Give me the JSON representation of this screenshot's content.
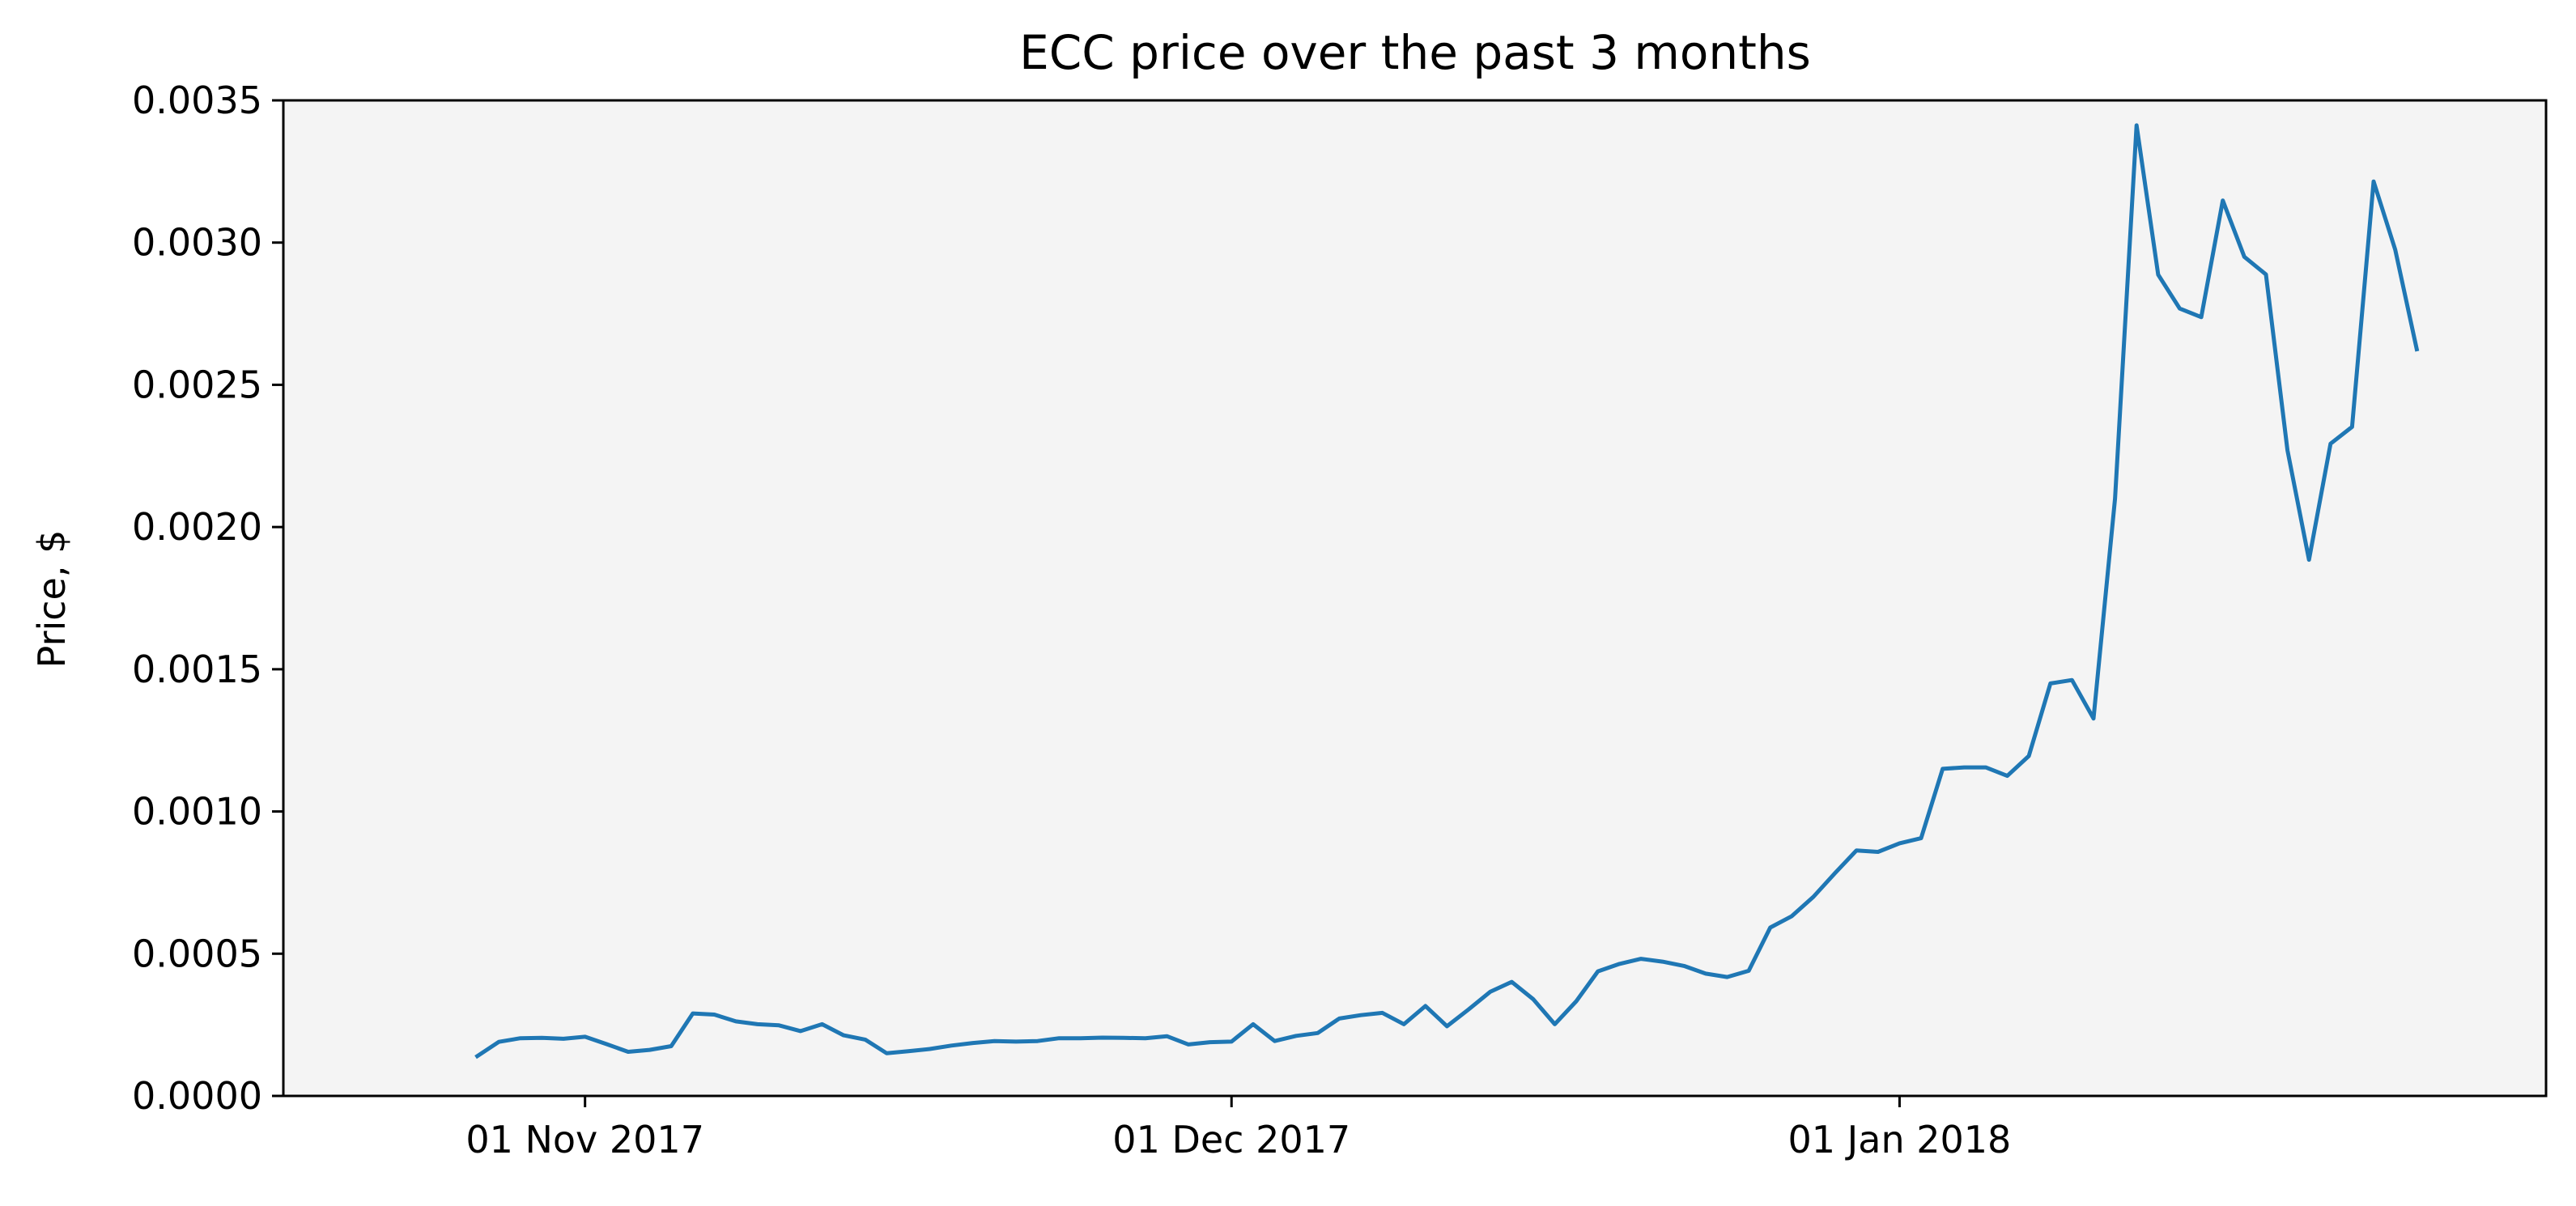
{
  "chart_data": {
    "type": "line",
    "title": "ECC price over the past 3 months",
    "xlabel": "",
    "ylabel": "Price, $",
    "xlim": [
      "2017-10-18",
      "2018-01-31"
    ],
    "ylim": [
      0,
      0.0035
    ],
    "yticks": [
      "0.0000",
      "0.0005",
      "0.0010",
      "0.0015",
      "0.0020",
      "0.0025",
      "0.0030",
      "0.0035"
    ],
    "xticks": [
      {
        "date": "2017-11-01",
        "label": "01 Nov 2017"
      },
      {
        "date": "2017-12-01",
        "label": "01 Dec 2017"
      },
      {
        "date": "2018-01-01",
        "label": "01 Jan 2018"
      }
    ],
    "grid": false,
    "legend": "none",
    "colors": {
      "line": "#1f77b4",
      "plot_background": "#f4f4f4",
      "frame": "#000000"
    },
    "x_start": "2017-10-27",
    "values": [
      0.00014,
      0.00019,
      0.000203,
      0.000204,
      0.000201,
      0.000208,
      0.000182,
      0.000155,
      0.000162,
      0.000175,
      0.00029,
      0.000286,
      0.000262,
      0.000252,
      0.000248,
      0.000228,
      0.000252,
      0.000213,
      0.000198,
      0.00015,
      0.000157,
      0.000165,
      0.000177,
      0.000186,
      0.000193,
      0.000191,
      0.000193,
      0.000203,
      0.000203,
      0.000205,
      0.000204,
      0.000203,
      0.00021,
      0.000181,
      0.000189,
      0.000191,
      0.000252,
      0.000193,
      0.000211,
      0.000221,
      0.000272,
      0.000284,
      0.000292,
      0.000252,
      0.000316,
      0.000245,
      0.000304,
      0.000366,
      0.000401,
      0.00034,
      0.000252,
      0.000333,
      0.000438,
      0.000464,
      0.000482,
      0.000472,
      0.000457,
      0.00043,
      0.000418,
      0.00044,
      0.000592,
      0.000632,
      0.0007,
      0.000783,
      0.000863,
      0.000858,
      0.000888,
      0.000906,
      0.00115,
      0.001155,
      0.001155,
      0.001125,
      0.001195,
      0.00145,
      0.001462,
      0.001327,
      0.0021,
      0.003412,
      0.002887,
      0.002768,
      0.002738,
      0.003148,
      0.00295,
      0.002888,
      0.00227,
      0.001885,
      0.002293,
      0.002352,
      0.003215,
      0.002975,
      0.002625
    ]
  }
}
